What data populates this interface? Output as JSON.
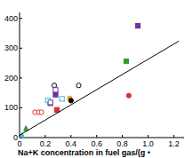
{
  "chart_data": {
    "type": "scatter",
    "x_label": "Na+K concentration in fuel gas/(g •",
    "xlim": [
      0,
      1.28
    ],
    "xticks": [
      0,
      0.2,
      0.4,
      0.6,
      0.8,
      {
        "value": 1,
        "label": "1.0"
      },
      1.2
    ],
    "ylim": [
      0,
      420
    ],
    "yticks": [
      0,
      100,
      200,
      300,
      400
    ],
    "series": [
      {
        "color": "#7030a0",
        "marker": "square",
        "x": [
          0.92,
          0.28
        ],
        "values": [
          375,
          144
        ]
      },
      {
        "color": "#2ca02c",
        "marker": "square",
        "x": [
          0.83
        ],
        "values": [
          256
        ]
      },
      {
        "color": "#e03030",
        "marker": "circle",
        "x": [
          0.85
        ],
        "values": [
          141
        ]
      },
      {
        "color": "#f5a623",
        "marker": "circle",
        "x": [
          0.39
        ],
        "values": [
          132
        ]
      },
      {
        "color": "#000000",
        "marker": "circle",
        "x": [
          0.4
        ],
        "values": [
          124
        ]
      },
      {
        "color": "#e03030",
        "marker": "square",
        "x": [
          0.24,
          0.29
        ],
        "values": [
          115,
          93
        ]
      },
      {
        "color": "#000000",
        "marker": "open-circle",
        "x": [
          0.27,
          0.46
        ],
        "values": [
          175,
          175
        ]
      },
      {
        "color": "#7030a0",
        "marker": "open-square",
        "x": [
          0.28
        ],
        "values": [
          160
        ]
      },
      {
        "color": "#4fb3d9",
        "marker": "open-square",
        "x": [
          0.33,
          0.22
        ],
        "values": [
          130,
          125
        ]
      },
      {
        "color": "#e03030",
        "marker": "open-circle",
        "x": [
          0.12,
          0.15,
          0.17
        ],
        "values": [
          85,
          85,
          85
        ]
      },
      {
        "color": "#2ca02c",
        "marker": "triangle",
        "x": [
          0.05
        ],
        "values": [
          31
        ]
      },
      {
        "color": "#4fb3d9",
        "marker": "triangle",
        "x": [
          0.02
        ],
        "values": [
          8
        ]
      },
      {
        "color": "#3050c0",
        "marker": "open-square",
        "x": [
          0.24
        ],
        "values": [
          118
        ]
      },
      {
        "type": "line",
        "color": "#000000",
        "x": [
          0,
          1.24
        ],
        "values": [
          8,
          324
        ]
      }
    ]
  }
}
